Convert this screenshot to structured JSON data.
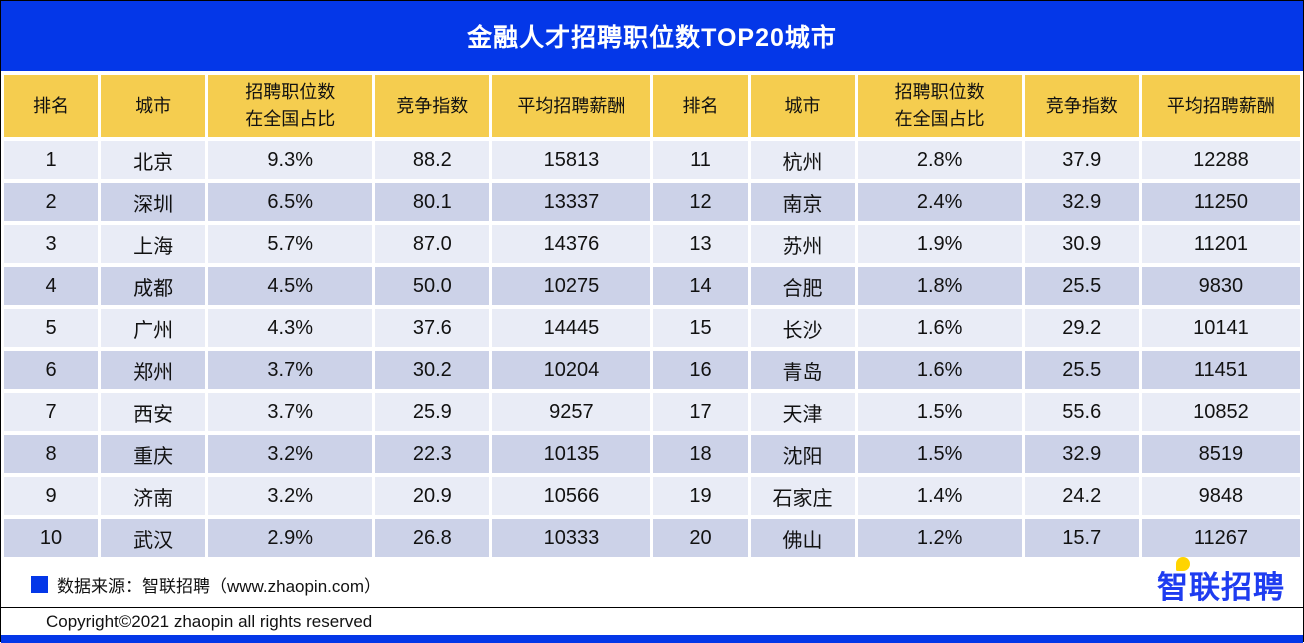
{
  "title": "金融人才招聘职位数TOP20城市",
  "table": {
    "header_labels": [
      "排名",
      "城市",
      "招聘职位数\n在全国占比",
      "竞争指数",
      "平均招聘薪酬"
    ],
    "column_keys": [
      "rank",
      "city",
      "share",
      "index",
      "salary"
    ]
  },
  "chart_data": {
    "type": "table",
    "title": "金融人才招聘职位数TOP20城市",
    "columns": [
      "排名",
      "城市",
      "招聘职位数在全国占比",
      "竞争指数",
      "平均招聘薪酬"
    ],
    "rows": [
      [
        "1",
        "北京",
        "9.3%",
        "88.2",
        "15813"
      ],
      [
        "2",
        "深圳",
        "6.5%",
        "80.1",
        "13337"
      ],
      [
        "3",
        "上海",
        "5.7%",
        "87.0",
        "14376"
      ],
      [
        "4",
        "成都",
        "4.5%",
        "50.0",
        "10275"
      ],
      [
        "5",
        "广州",
        "4.3%",
        "37.6",
        "14445"
      ],
      [
        "6",
        "郑州",
        "3.7%",
        "30.2",
        "10204"
      ],
      [
        "7",
        "西安",
        "3.7%",
        "25.9",
        "9257"
      ],
      [
        "8",
        "重庆",
        "3.2%",
        "22.3",
        "10135"
      ],
      [
        "9",
        "济南",
        "3.2%",
        "20.9",
        "10566"
      ],
      [
        "10",
        "武汉",
        "2.9%",
        "26.8",
        "10333"
      ],
      [
        "11",
        "杭州",
        "2.8%",
        "37.9",
        "12288"
      ],
      [
        "12",
        "南京",
        "2.4%",
        "32.9",
        "11250"
      ],
      [
        "13",
        "苏州",
        "1.9%",
        "30.9",
        "11201"
      ],
      [
        "14",
        "合肥",
        "1.8%",
        "25.5",
        "9830"
      ],
      [
        "15",
        "长沙",
        "1.6%",
        "29.2",
        "10141"
      ],
      [
        "16",
        "青岛",
        "1.6%",
        "25.5",
        "11451"
      ],
      [
        "17",
        "天津",
        "1.5%",
        "55.6",
        "10852"
      ],
      [
        "18",
        "沈阳",
        "1.5%",
        "32.9",
        "8519"
      ],
      [
        "19",
        "石家庄",
        "1.4%",
        "24.2",
        "9848"
      ],
      [
        "20",
        "佛山",
        "1.2%",
        "15.7",
        "11267"
      ]
    ]
  },
  "footer": {
    "source": "数据来源：智联招聘（www.zhaopin.com）",
    "copyright": "Copyright©2021 zhaopin all rights reserved",
    "logo_text": "智联招聘"
  },
  "colors": {
    "banner_blue": "#0437e8",
    "header_yellow": "#f5cd4f",
    "row_light": "#e9ecf6",
    "row_dark": "#ccd2e8",
    "logo_blue": "#1e3cf0",
    "logo_yellow": "#ffd400"
  }
}
